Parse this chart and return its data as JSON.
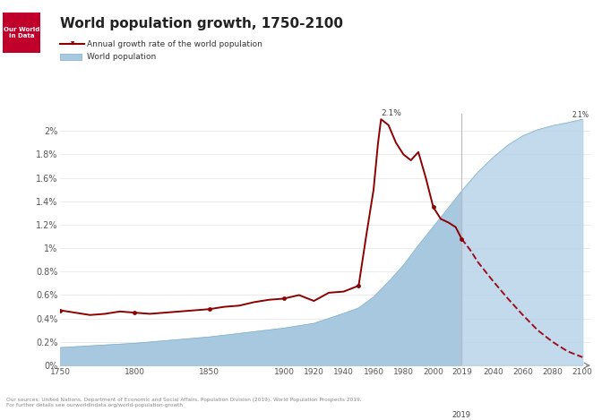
{
  "title": "World population growth, 1750-2100",
  "legend_entries": [
    "Annual growth rate of the world population",
    "World population"
  ],
  "yticks": [
    "0%",
    "0.2%",
    "0.4%",
    "0.6%",
    "0.8%",
    "1%",
    "1.2%",
    "1.4%",
    "1.6%",
    "1.8%",
    "2%"
  ],
  "ytick_vals": [
    0.0,
    0.2,
    0.4,
    0.6,
    0.8,
    1.0,
    1.2,
    1.4,
    1.6,
    1.8,
    2.0
  ],
  "xlim": [
    1750,
    2105
  ],
  "ylim": [
    0,
    2.15
  ],
  "bg_color": "#ffffff",
  "area_color_hist": "#a8c8e0",
  "area_color_proj": "#b8d4e8",
  "area_edge_color": "#7aaec8",
  "line_color": "#8b0000",
  "line_color_proj": "#9b1020",
  "projection_start": 2019,
  "growth_rate_data": {
    "years": [
      1750,
      1760,
      1770,
      1780,
      1790,
      1800,
      1810,
      1820,
      1830,
      1840,
      1850,
      1860,
      1870,
      1880,
      1890,
      1900,
      1910,
      1920,
      1930,
      1940,
      1950,
      1955,
      1960,
      1963,
      1965,
      1970,
      1975,
      1980,
      1985,
      1990,
      1995,
      2000,
      2005,
      2010,
      2015,
      2019,
      2025,
      2030,
      2040,
      2050,
      2060,
      2070,
      2080,
      2090,
      2100
    ],
    "values": [
      0.47,
      0.45,
      0.43,
      0.44,
      0.46,
      0.45,
      0.44,
      0.45,
      0.46,
      0.47,
      0.48,
      0.5,
      0.51,
      0.54,
      0.56,
      0.57,
      0.6,
      0.55,
      0.62,
      0.63,
      0.68,
      1.1,
      1.5,
      1.9,
      2.1,
      2.05,
      1.9,
      1.8,
      1.75,
      1.82,
      1.6,
      1.35,
      1.25,
      1.22,
      1.18,
      1.08,
      0.98,
      0.88,
      0.72,
      0.57,
      0.43,
      0.3,
      0.2,
      0.12,
      0.07
    ]
  },
  "population_data": {
    "years": [
      1750,
      1800,
      1850,
      1900,
      1920,
      1940,
      1950,
      1960,
      1970,
      1980,
      1990,
      2000,
      2010,
      2019,
      2020,
      2030,
      2040,
      2050,
      2060,
      2070,
      2080,
      2090,
      2100
    ],
    "values_billion": [
      0.79,
      0.98,
      1.26,
      1.65,
      1.86,
      2.3,
      2.54,
      3.03,
      3.7,
      4.43,
      5.31,
      6.13,
      6.96,
      7.71,
      7.79,
      8.55,
      9.19,
      9.74,
      10.15,
      10.42,
      10.6,
      10.73,
      10.88
    ],
    "max_pop_billion": 10.88,
    "pop_at_2100_scaled": 2.1
  },
  "colors": {
    "title": "#222222",
    "axis_text": "#555555",
    "grid": "#e8e8e8",
    "projection_line": "#bbbbbb",
    "annotation": "#444444"
  },
  "dot_years": [
    1750,
    1800,
    1850,
    1900,
    1950,
    2000,
    2019
  ],
  "dot_values": [
    0.47,
    0.45,
    0.48,
    0.57,
    0.68,
    1.35,
    1.08
  ],
  "xticks": [
    1750,
    1800,
    1850,
    1900,
    1920,
    1940,
    1960,
    1980,
    2000,
    2019,
    2040,
    2060,
    2080,
    2100
  ],
  "source_text": "Our sources: United Nations, Department of Economic and Social Affairs, Population Division (2019). World Population Prospects 2019.\nFor further details see ourworldindata.org/world-population-growth"
}
